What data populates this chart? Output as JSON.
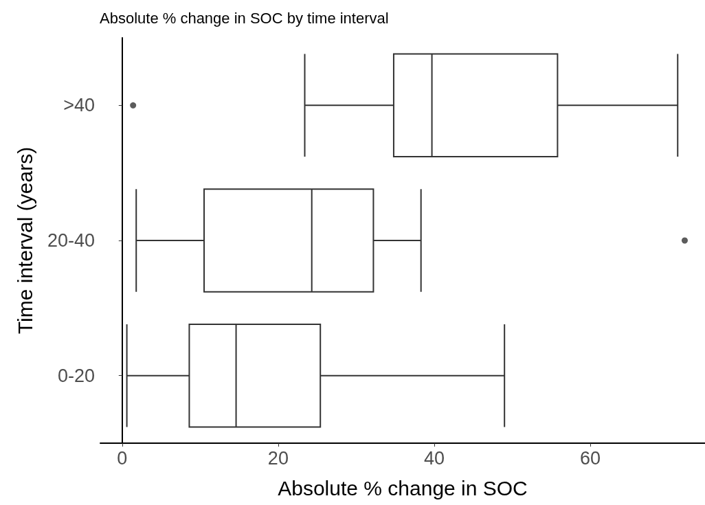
{
  "chart_data": {
    "type": "box",
    "title": "Absolute % change in SOC by time interval",
    "xlabel": "Absolute % change in SOC",
    "ylabel": "Time interval (years)",
    "orientation": "horizontal",
    "categories": [
      ">40",
      "20-40",
      "0-20"
    ],
    "boxes": [
      {
        "low": 23.4,
        "q1": 34.8,
        "median": 39.7,
        "q3": 55.8,
        "high": 71.2,
        "outliers": [
          1.4
        ]
      },
      {
        "low": 1.8,
        "q1": 10.5,
        "median": 24.3,
        "q3": 32.2,
        "high": 38.3,
        "outliers": [
          72.1
        ]
      },
      {
        "low": 0.6,
        "q1": 8.6,
        "median": 14.6,
        "q3": 25.4,
        "high": 49.0
      }
    ],
    "color": "#333333",
    "xlim": [
      -2.8,
      74.7
    ],
    "xticks": [
      0,
      20,
      40,
      60
    ],
    "grid": false
  }
}
